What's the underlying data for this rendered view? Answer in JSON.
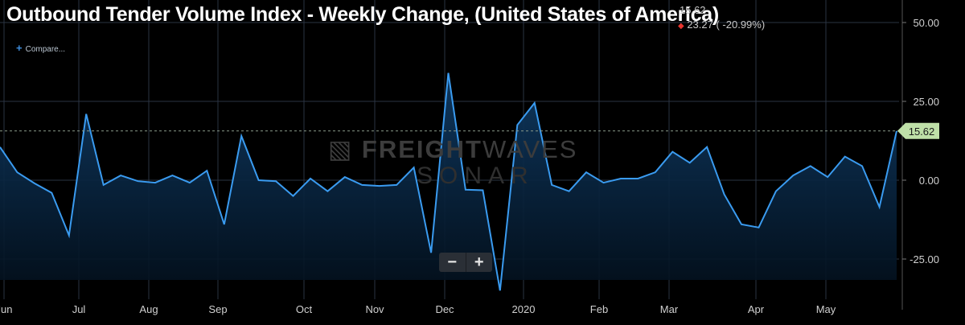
{
  "header": {
    "title": "Outbound Tender Volume Index - Weekly Change, (United States of America)",
    "last_value": "15.62",
    "change": "23.27 ( -20.99%)",
    "change_direction": "down",
    "compare_label": "Compare..."
  },
  "watermark": {
    "brand_bold": "FREIGHT",
    "brand_light": "WAVES",
    "product": "SONAR"
  },
  "zoom": {
    "minus": "−",
    "plus": "+"
  },
  "colors": {
    "background": "#000000",
    "line": "#3a9bf0",
    "fill_top": "#0f3a63",
    "grid": "#2a3442",
    "current_badge": "#bfe0a8",
    "down": "#e8352e"
  },
  "chart_data": {
    "type": "area",
    "title": "Outbound Tender Volume Index - Weekly Change, (United States of America)",
    "y_ticks": [
      "50.00",
      "25.00",
      "0.00",
      "-25.00"
    ],
    "ylim": [
      -37,
      56
    ],
    "x_tick_labels": [
      "Jun",
      "Jul",
      "Aug",
      "Sep",
      "Oct",
      "Nov",
      "Dec",
      "2020",
      "Feb",
      "Mar",
      "Apr",
      "May"
    ],
    "current_value": 15.62,
    "current_label": "15.62",
    "grid": true,
    "values": [
      10.5,
      2.5,
      -1.0,
      -4.0,
      -17.5,
      21.0,
      -1.5,
      1.5,
      -0.3,
      -0.8,
      1.5,
      -0.8,
      3.0,
      -14.0,
      14.0,
      0.0,
      -0.3,
      -5.0,
      0.5,
      -3.5,
      1.0,
      -1.5,
      -1.8,
      -1.5,
      4.0,
      -23.0,
      34.0,
      -3.0,
      -3.2,
      -35.0,
      17.5,
      24.5,
      -1.5,
      -3.5,
      2.5,
      -0.8,
      0.5,
      0.5,
      2.5,
      9.0,
      5.5,
      10.5,
      -4.5,
      -14.0,
      -15.0,
      -3.5,
      1.5,
      4.5,
      1.0,
      7.5,
      4.5,
      -8.5,
      15.62
    ]
  }
}
